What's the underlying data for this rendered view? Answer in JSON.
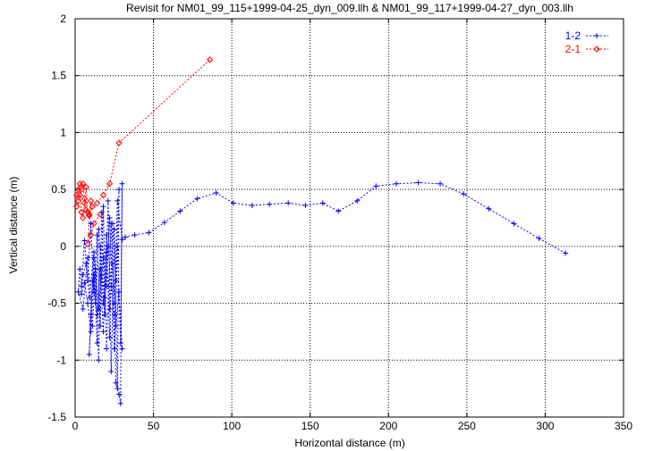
{
  "chart_data": {
    "type": "line",
    "title": "Revisit for NM01_99_115+1999-04-25_dyn_009.llh & NM01_99_117+1999-04-27_dyn_003.llh",
    "xlabel": "Horizontal distance (m)",
    "ylabel": "Vertical distance (m)",
    "xlim": [
      0,
      350
    ],
    "ylim": [
      -1.5,
      2
    ],
    "xticks": [
      0,
      50,
      100,
      150,
      200,
      250,
      300,
      350
    ],
    "yticks": [
      -1.5,
      -1,
      -0.5,
      0,
      0.5,
      1,
      1.5,
      2
    ],
    "xtick_labels": [
      "0",
      "50",
      "100",
      "150",
      "200",
      "250",
      "300",
      "350"
    ],
    "ytick_labels": [
      "-1.5",
      "-1",
      "-0.5",
      "0",
      "0.5",
      "1",
      "1.5",
      "2"
    ],
    "grid": true,
    "legend_position": "top-right",
    "series": [
      {
        "name": "1-2",
        "color": "#0000ff",
        "marker": "plus",
        "points": [
          [
            313,
            -0.06
          ],
          [
            296,
            0.07
          ],
          [
            280,
            0.2
          ],
          [
            264,
            0.33
          ],
          [
            248,
            0.46
          ],
          [
            233,
            0.55
          ],
          [
            219,
            0.56
          ],
          [
            205,
            0.55
          ],
          [
            192,
            0.53
          ],
          [
            180,
            0.4
          ],
          [
            168,
            0.31
          ],
          [
            158,
            0.38
          ],
          [
            147,
            0.36
          ],
          [
            136,
            0.38
          ],
          [
            124,
            0.37
          ],
          [
            113,
            0.36
          ],
          [
            101,
            0.38
          ],
          [
            90,
            0.47
          ],
          [
            78,
            0.42
          ],
          [
            67,
            0.31
          ],
          [
            57,
            0.21
          ],
          [
            47,
            0.12
          ],
          [
            38,
            0.1
          ],
          [
            32,
            0.08
          ],
          [
            30,
            0.06
          ],
          [
            27,
            0.4
          ],
          [
            25,
            -0.5
          ],
          [
            23,
            0.2
          ],
          [
            20,
            -0.9
          ],
          [
            18,
            0.35
          ],
          [
            16,
            -0.7
          ],
          [
            14,
            0.1
          ],
          [
            12,
            -0.4
          ],
          [
            10,
            0.2
          ],
          [
            8,
            -0.3
          ],
          [
            6,
            0.05
          ],
          [
            4,
            -0.35
          ],
          [
            3,
            -0.2
          ],
          [
            2,
            -0.4
          ],
          [
            5,
            -0.55
          ],
          [
            8,
            -0.1
          ],
          [
            11,
            -0.7
          ],
          [
            13,
            -0.2
          ],
          [
            15,
            -1.0
          ],
          [
            17,
            0.3
          ],
          [
            19,
            -0.6
          ],
          [
            21,
            0.4
          ],
          [
            23,
            -1.1
          ],
          [
            25,
            0.15
          ],
          [
            27,
            -1.25
          ],
          [
            28,
            0.5
          ],
          [
            26,
            -0.3
          ],
          [
            24,
            0.2
          ],
          [
            22,
            -0.8
          ],
          [
            20,
            0.1
          ],
          [
            18,
            -0.5
          ],
          [
            16,
            0.0
          ],
          [
            14,
            -0.85
          ],
          [
            12,
            -0.1
          ],
          [
            10,
            -0.6
          ],
          [
            9,
            -0.95
          ],
          [
            11,
            -0.3
          ],
          [
            13,
            -0.5
          ],
          [
            15,
            0.15
          ],
          [
            17,
            -0.25
          ],
          [
            19,
            -0.45
          ],
          [
            21,
            0.0
          ],
          [
            23,
            -0.35
          ],
          [
            25,
            -0.6
          ],
          [
            26,
            -1.2
          ],
          [
            28,
            -1.3
          ],
          [
            29,
            -1.38
          ],
          [
            30,
            0.55
          ],
          [
            29,
            -0.85
          ],
          [
            27,
            0.0
          ],
          [
            25,
            -0.9
          ],
          [
            22,
            0.25
          ],
          [
            20,
            -0.35
          ],
          [
            18,
            -0.1
          ],
          [
            15,
            -0.55
          ],
          [
            12,
            -0.05
          ],
          [
            9,
            -0.45
          ],
          [
            7,
            -0.15
          ],
          [
            5,
            -0.25
          ],
          [
            4,
            -0.42
          ],
          [
            6,
            -0.32
          ],
          [
            8,
            -0.5
          ],
          [
            10,
            -0.75
          ],
          [
            12,
            -0.25
          ],
          [
            14,
            -0.6
          ],
          [
            16,
            -0.2
          ],
          [
            18,
            -0.75
          ],
          [
            20,
            -0.05
          ],
          [
            22,
            -0.55
          ],
          [
            24,
            -0.15
          ],
          [
            26,
            -0.7
          ],
          [
            28,
            -0.4
          ],
          [
            30,
            -0.9
          ]
        ]
      },
      {
        "name": "2-1",
        "color": "#ff0000",
        "marker": "diamond",
        "points": [
          [
            86,
            1.64
          ],
          [
            28,
            0.91
          ],
          [
            22,
            0.55
          ],
          [
            18,
            0.45
          ],
          [
            14,
            0.38
          ],
          [
            11,
            0.35
          ],
          [
            9,
            0.28
          ],
          [
            7,
            0.32
          ],
          [
            6,
            0.42
          ],
          [
            5,
            0.55
          ],
          [
            4,
            0.5
          ],
          [
            3,
            0.45
          ],
          [
            2,
            0.4
          ],
          [
            1,
            0.35
          ],
          [
            1,
            0.45
          ],
          [
            2,
            0.5
          ],
          [
            3,
            0.55
          ],
          [
            4,
            0.3
          ],
          [
            5,
            0.25
          ],
          [
            6,
            0.38
          ],
          [
            7,
            0.52
          ],
          [
            8,
            0.3
          ],
          [
            9,
            0.27
          ],
          [
            10,
            0.4
          ],
          [
            8,
            0.02
          ],
          [
            10,
            0.1
          ],
          [
            12,
            0.2
          ],
          [
            16,
            0.28
          ]
        ]
      }
    ]
  }
}
